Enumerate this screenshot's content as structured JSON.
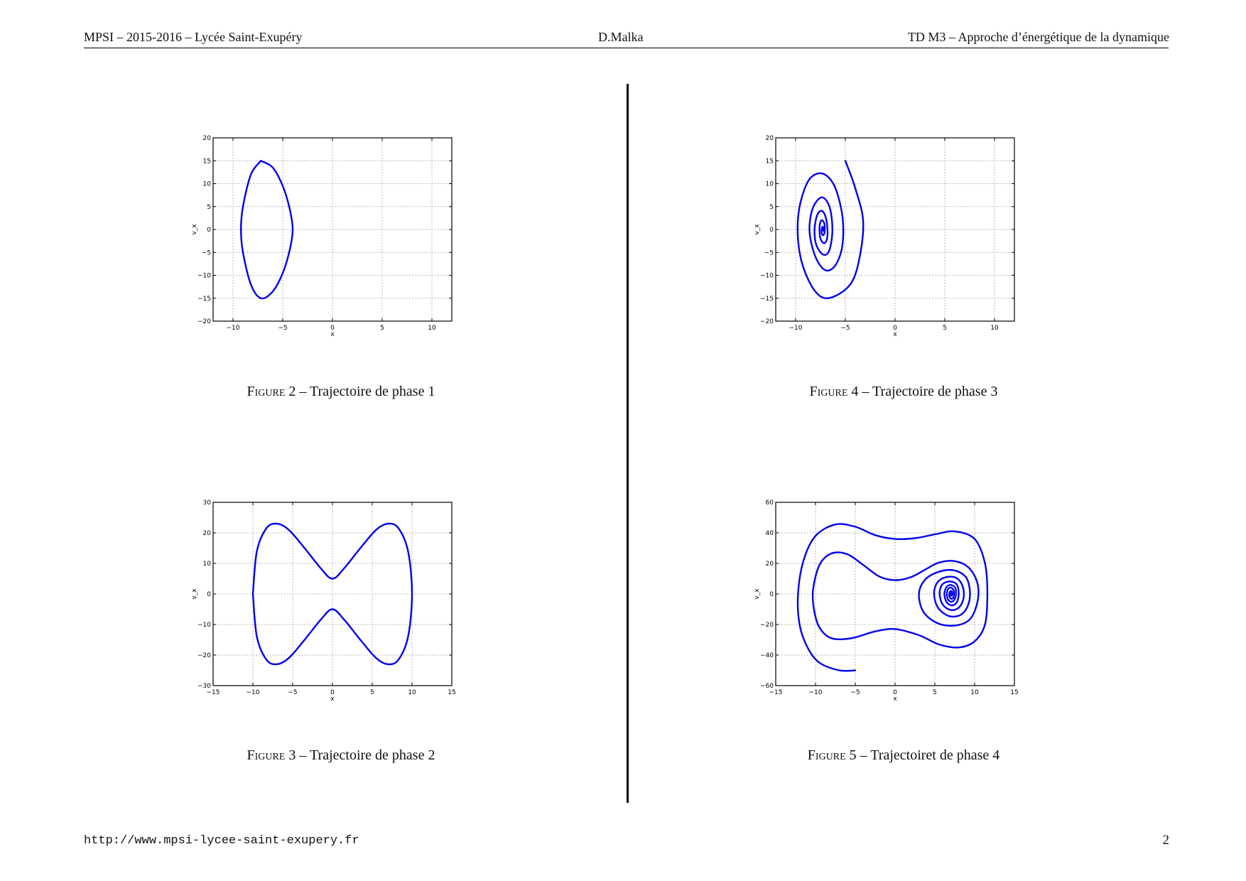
{
  "header": {
    "left": "MPSI – 2015-2016 – Lycée Saint-Exupéry",
    "center": "D.Malka",
    "right": "TD M3 – Approche d’énergétique de la dynamique"
  },
  "footer": {
    "url": "http://www.mpsi-lycee-saint-exupery.fr",
    "page": "2"
  },
  "colors": {
    "curve": "#0000ee",
    "grid": "#a0a0a0",
    "rule": "#000000"
  },
  "figures": [
    {
      "caption_label": "Figure 2",
      "caption_text": "– Trajectoire de phase 1"
    },
    {
      "caption_label": "Figure 3",
      "caption_text": "– Trajectoire de phase 2"
    },
    {
      "caption_label": "Figure 4",
      "caption_text": "– Trajectoire de phase 3"
    },
    {
      "caption_label": "Figure 5",
      "caption_text": "– Trajectoiret de phase 4"
    }
  ],
  "chart_data": [
    {
      "type": "line",
      "figure": "Figure 2",
      "xlabel": "x",
      "ylabel": "v_x",
      "xlim": [
        -12,
        12
      ],
      "ylim": [
        -20,
        20
      ],
      "xticks": [
        -10,
        -5,
        0,
        5,
        10
      ],
      "yticks": [
        -20,
        -15,
        -10,
        -5,
        0,
        5,
        10,
        15,
        20
      ],
      "grid": true,
      "series": [
        {
          "values": [
            [
              -7.2,
              15
            ],
            [
              -6.0,
              13.5
            ],
            [
              -5.0,
              9.5
            ],
            [
              -4.3,
              4.5
            ],
            [
              -4.0,
              0
            ],
            [
              -4.3,
              -4.5
            ],
            [
              -5.0,
              -9.5
            ],
            [
              -6.0,
              -13.5
            ],
            [
              -7.2,
              -15
            ],
            [
              -8.2,
              -12
            ],
            [
              -9.0,
              -5
            ],
            [
              -9.2,
              0
            ],
            [
              -9.0,
              5
            ],
            [
              -8.2,
              12
            ],
            [
              -7.2,
              15
            ]
          ]
        }
      ]
    },
    {
      "type": "line",
      "figure": "Figure 3",
      "xlabel": "x",
      "ylabel": "v_x",
      "xlim": [
        -15,
        15
      ],
      "ylim": [
        -30,
        30
      ],
      "xticks": [
        -15,
        -10,
        -5,
        0,
        5,
        10,
        15
      ],
      "yticks": [
        -30,
        -20,
        -10,
        0,
        10,
        20,
        30
      ],
      "grid": true,
      "series": [
        {
          "values": [
            [
              -10,
              0
            ],
            [
              -9.5,
              14
            ],
            [
              -8.3,
              21.5
            ],
            [
              -7,
              23
            ],
            [
              -5.5,
              21
            ],
            [
              -3.5,
              15
            ],
            [
              -1.5,
              8.5
            ],
            [
              0,
              5
            ],
            [
              1.5,
              8.5
            ],
            [
              3.5,
              15
            ],
            [
              5.5,
              21
            ],
            [
              7,
              23
            ],
            [
              8.3,
              21.5
            ],
            [
              9.5,
              14
            ],
            [
              10,
              0
            ],
            [
              9.5,
              -14
            ],
            [
              8.3,
              -21.5
            ],
            [
              7,
              -23
            ],
            [
              5.5,
              -21
            ],
            [
              3.5,
              -15
            ],
            [
              1.5,
              -8.5
            ],
            [
              0,
              -5
            ],
            [
              -1.5,
              -8.5
            ],
            [
              -3.5,
              -15
            ],
            [
              -5.5,
              -21
            ],
            [
              -7,
              -23
            ],
            [
              -8.3,
              -21.5
            ],
            [
              -9.5,
              -14
            ],
            [
              -10,
              0
            ]
          ]
        }
      ]
    },
    {
      "type": "line",
      "figure": "Figure 4",
      "xlabel": "x",
      "ylabel": "v_x",
      "xlim": [
        -12,
        12
      ],
      "ylim": [
        -20,
        20
      ],
      "xticks": [
        -10,
        -5,
        0,
        5,
        10
      ],
      "yticks": [
        -20,
        -15,
        -10,
        -5,
        0,
        5,
        10,
        15,
        20
      ],
      "grid": true,
      "series": [
        {
          "values": [
            [
              -5.0,
              15
            ],
            [
              -4.0,
              9
            ],
            [
              -3.2,
              1.5
            ],
            [
              -3.7,
              -7.5
            ],
            [
              -4.7,
              -12.5
            ],
            [
              -6.8,
              -15
            ],
            [
              -8.2,
              -13
            ],
            [
              -9.4,
              -7
            ],
            [
              -9.8,
              0
            ],
            [
              -9.5,
              6
            ],
            [
              -8.6,
              11
            ],
            [
              -7.3,
              12.2
            ],
            [
              -6.1,
              9.5
            ],
            [
              -5.3,
              3
            ],
            [
              -5.3,
              -3.5
            ],
            [
              -6.0,
              -7.8
            ],
            [
              -7.0,
              -8.9
            ],
            [
              -8.0,
              -6
            ],
            [
              -8.6,
              -0.5
            ],
            [
              -8.3,
              4.5
            ],
            [
              -7.4,
              7
            ],
            [
              -6.6,
              5
            ],
            [
              -6.3,
              0
            ],
            [
              -6.6,
              -4.5
            ],
            [
              -7.2,
              -5.5
            ],
            [
              -7.9,
              -3.5
            ],
            [
              -8.1,
              0
            ],
            [
              -7.8,
              3.3
            ],
            [
              -7.3,
              4
            ],
            [
              -6.9,
              2
            ],
            [
              -6.8,
              -1.5
            ],
            [
              -7.1,
              -3
            ],
            [
              -7.5,
              -2
            ],
            [
              -7.6,
              0.5
            ],
            [
              -7.4,
              2
            ],
            [
              -7.1,
              1.2
            ],
            [
              -7.1,
              -0.8
            ],
            [
              -7.3,
              -1.2
            ],
            [
              -7.4,
              -0.2
            ],
            [
              -7.3,
              0.6
            ],
            [
              -7.2,
              0.2
            ],
            [
              -7.2,
              -0.3
            ],
            [
              -7.25,
              0
            ]
          ]
        }
      ]
    },
    {
      "type": "line",
      "figure": "Figure 5",
      "xlabel": "x",
      "ylabel": "v_x",
      "xlim": [
        -15,
        15
      ],
      "ylim": [
        -60,
        60
      ],
      "xticks": [
        -15,
        -10,
        -5,
        0,
        5,
        10,
        15
      ],
      "yticks": [
        -60,
        -40,
        -20,
        0,
        20,
        40,
        60
      ],
      "grid": true,
      "series": [
        {
          "values": [
            [
              -5,
              -50
            ],
            [
              -7,
              -50
            ],
            [
              -9.5,
              -45
            ],
            [
              -11,
              -35
            ],
            [
              -12,
              -20
            ],
            [
              -12.2,
              0
            ],
            [
              -11.5,
              22
            ],
            [
              -10,
              38
            ],
            [
              -7.5,
              45.5
            ],
            [
              -5,
              44
            ],
            [
              -2.5,
              38.5
            ],
            [
              0,
              36
            ],
            [
              2.5,
              36.5
            ],
            [
              5,
              39
            ],
            [
              7.5,
              41
            ],
            [
              10,
              36
            ],
            [
              11.3,
              20
            ],
            [
              11.6,
              0
            ],
            [
              11.3,
              -20
            ],
            [
              10,
              -31
            ],
            [
              8,
              -35
            ],
            [
              5.5,
              -33
            ],
            [
              3,
              -27
            ],
            [
              0,
              -23
            ],
            [
              -2.5,
              -24.5
            ],
            [
              -5.5,
              -29
            ],
            [
              -8,
              -29
            ],
            [
              -9.5,
              -22
            ],
            [
              -10.2,
              -10
            ],
            [
              -10.3,
              3
            ],
            [
              -9.5,
              19
            ],
            [
              -8,
              26.5
            ],
            [
              -6,
              26
            ],
            [
              -4,
              19
            ],
            [
              -2,
              11.5
            ],
            [
              0,
              9
            ],
            [
              2,
              11
            ],
            [
              3.8,
              16
            ],
            [
              5.5,
              20.5
            ],
            [
              7.5,
              21.5
            ],
            [
              9.2,
              17.5
            ],
            [
              10.3,
              8
            ],
            [
              10.4,
              -4
            ],
            [
              9.5,
              -16
            ],
            [
              7.8,
              -20.5
            ],
            [
              5.5,
              -19.5
            ],
            [
              3.6,
              -12
            ],
            [
              3.0,
              0
            ],
            [
              3.8,
              9.5
            ],
            [
              5.5,
              14.5
            ],
            [
              7.4,
              15.5
            ],
            [
              8.9,
              11
            ],
            [
              9.4,
              2
            ],
            [
              9.2,
              -7
            ],
            [
              8.3,
              -13.5
            ],
            [
              6.8,
              -14.5
            ],
            [
              5.4,
              -9
            ],
            [
              4.9,
              0
            ],
            [
              5.3,
              7.5
            ],
            [
              6.4,
              11
            ],
            [
              7.7,
              10.5
            ],
            [
              8.5,
              5
            ],
            [
              8.6,
              -3
            ],
            [
              8.0,
              -9
            ],
            [
              7.0,
              -10.5
            ],
            [
              6.0,
              -7
            ],
            [
              5.6,
              0
            ],
            [
              5.9,
              6
            ],
            [
              6.8,
              8.2
            ],
            [
              7.7,
              6.5
            ],
            [
              8.0,
              1
            ],
            [
              7.8,
              -5
            ],
            [
              7.2,
              -7.5
            ],
            [
              6.5,
              -5.5
            ],
            [
              6.2,
              0
            ],
            [
              6.5,
              4.8
            ],
            [
              7.1,
              5.8
            ],
            [
              7.6,
              3.5
            ],
            [
              7.6,
              -2
            ],
            [
              7.2,
              -5
            ],
            [
              6.7,
              -4
            ],
            [
              6.5,
              0
            ],
            [
              6.7,
              3.5
            ],
            [
              7.1,
              4
            ],
            [
              7.4,
              1.5
            ],
            [
              7.3,
              -2.5
            ],
            [
              7.0,
              -3
            ],
            [
              6.8,
              -1
            ],
            [
              6.9,
              1.5
            ],
            [
              7.1,
              1.8
            ],
            [
              7.2,
              0
            ],
            [
              7.05,
              -1.2
            ],
            [
              6.95,
              0
            ],
            [
              7.0,
              0.5
            ]
          ]
        }
      ]
    }
  ]
}
